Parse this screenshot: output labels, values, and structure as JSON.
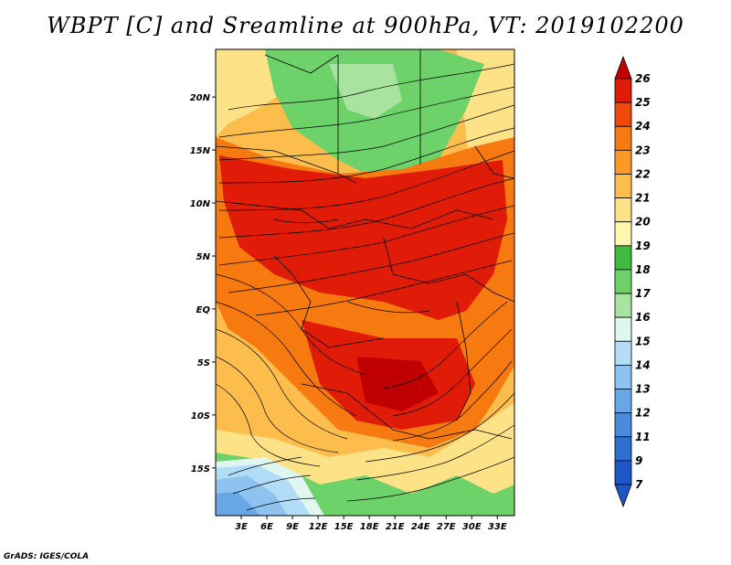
{
  "title": "WBPT [C] and Sreamline at 900hPa, VT: 2019102200",
  "credit": "GrADS: IGES/COLA",
  "map": {
    "lon_labels": [
      "3E",
      "6E",
      "9E",
      "12E",
      "15E",
      "18E",
      "21E",
      "24E",
      "27E",
      "30E",
      "33E"
    ],
    "lat_labels": [
      "20N",
      "15N",
      "10N",
      "5N",
      "EQ",
      "5S",
      "10S",
      "15S"
    ],
    "lon_range": [
      0,
      35
    ],
    "lat_range": [
      -19.5,
      24.5
    ]
  },
  "colorbar": {
    "labels": [
      "26",
      "25",
      "24",
      "23",
      "22",
      "21",
      "20",
      "19",
      "18",
      "17",
      "16",
      "15",
      "14",
      "13",
      "12",
      "11",
      "9",
      "7"
    ],
    "colors": [
      "#c00000",
      "#e01b08",
      "#f04a0a",
      "#f77a10",
      "#fa9a25",
      "#fdbd4c",
      "#fde287",
      "#fff6b0",
      "#3fbb3f",
      "#6ed26a",
      "#a9e3a0",
      "#dff7f0",
      "#b3dcf6",
      "#8ec2ef",
      "#68a6e6",
      "#4a8bdd",
      "#2e6fd2",
      "#1f57c8"
    ]
  }
}
